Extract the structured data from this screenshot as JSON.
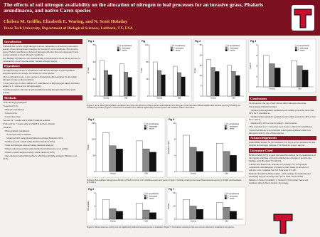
{
  "header": {
    "title": "The effects of soil nitrogen availability on the allocation of nitrogen to leaf processes for an invasive grass, Phalaris arundinacea, and native Carex species",
    "authors": "Chelsea M. Griffin, Elizabeth E. Waring, and N. Scott Holaday",
    "affiliation": "Texas Tech University, Department of Biological Sciences, Lubbock, TX, USA"
  },
  "left": {
    "sections": [
      {
        "heading": "Introduction",
        "paragraphs": [
          "Wetlands that receive a high nitrogen load are vulnerable to invasion by non-native species whose nitrogen-use strategies are favored by such conditions. The invasive grass, Phalaris arundinacea, thrives in nitrogen-rich sites that once supported Carex species adapted to lower nitrogen conditions.",
          "Our findings will improve the understanding of physiological bases for the success or vulnerability of each species under variable nitrogen supply."
        ]
      },
      {
        "heading": "Hypotheses",
        "paragraphs": [
          "•At high nitrogen levels, P. arundinacea will allocate nitrogen to photosynthetic enzymes and less to storage, in contrast to Carex species.",
          "•At low nitrogen levels, Carex species will maintain photosynthesis by allocating nitrogen storage to photosynthesis.",
          "•Carex lasiocarpa is more similar to P. arundinacea at high nitrogen supply and more similar to C. stricta at low nitrogen supply.",
          "•Soluble protein is allocated to photosynthesis during nitrogen deprivation in all species."
        ]
      },
      {
        "heading": "Methods",
        "paragraphs": [
          "•TTU Biology greenhouse",
          "•3 species (N=5)",
          "   •Phalaris arundinacea",
          "   •Carex stricta",
          "   •Carex lasiocarpa",
          "•Grown for 7 weeks with 15mM N nutrient solution",
          "•Followed by 7 weeks under 0.15mM N nutrient solution",
          "•Analysis",
          "   •Photosynthetic parameters",
          "      •Collected with Li-6400XT",
          "      •Analyzed in R using photosynthesis package (Duursma 2015)",
          "   •Soluble protein content using Bradford method (1976)",
          "   •Total leaf nitrogen analyzed using elemental analyzer",
          "   •Nitrate reductase activity using method from Mussarova et al. (2006)",
          "   •Nitrate content analyzed using Cataldo method (1975)",
          "   •Data analyzed using Mixed-effects ANOVA in R (nlme package; Pinheiro et al. 2013)"
        ]
      }
    ]
  },
  "right": {
    "sections": [
      {
        "heading": "Conclusions",
        "paragraphs": [
          "•In all species, the age of leaf did not affect nitrogen allocation.",
          "•Decreasing available nitrogen",
          "   •Reduced photosynthetic parameters and soluble protein by more than 50% for P. arundinacea",
          "   •Reduced photosynthetic parameters and soluble protein by 40% or less for C. stricta",
          "   •Reduced by 20% or less in young C. stricta leaves",
          "•The responses for C. lasiocarpa were closer to that for P. arundinacea.",
          "•Stored leaf nitrate is not allocated toward photosynthesis under low nitrogen levels by any of these species."
        ]
      },
      {
        "heading": "Acknowledgements",
        "paragraphs": [
          "Dallas Haun Thanks for lab assistance. Dr. Ray Lee for assistance in data analysis and nitrogen samples. TTU funds for project support."
        ]
      },
      {
        "heading": "Literature Cited",
        "paragraphs": [
          "Bradford MM (1976) A rapid and sensitive method for the quantitation of microgram quantities of protein utilizing the principle of protein-dye binding. Anal Biochem 72:248-254.",
          "Cataldo DA, Haroon M, Schrader LE, Youngs VL (1975) Rapid colorimetric determination of nitrate in plant tissue by nitration of salicylic acid. Commun Soil Sci Plant Anal 6:71-80.",
          "Duursma RA (2015) Plantecophys - an R package for analysing and modelling leaf gas exchange data. PLoS ONE 10:e0143346.",
          "Pinheiro J, Bates D, DebRoy S, Sarkar D (2013) nlme: linear and nonlinear mixed effects models. R package."
        ]
      }
    ]
  },
  "figures": [
    {
      "label": "Fig 1",
      "ylabel": "Vcmax",
      "categories": [
        "Young",
        "Old"
      ],
      "series": [
        {
          "name": "P. arundinacea",
          "color": "#ffffff",
          "values": [
            42,
            38
          ]
        },
        {
          "name": "C. lasiocarpa",
          "color": "#888888",
          "values": [
            30,
            28
          ]
        },
        {
          "name": "C. stricta",
          "color": "#111111",
          "values": [
            25,
            22
          ]
        }
      ],
      "ylim": [
        0,
        60
      ],
      "yticks": [
        0,
        20,
        40,
        60
      ]
    },
    {
      "label": "Fig",
      "ylabel": "Jmax",
      "categories": [
        "Young",
        "Old"
      ],
      "series": [
        {
          "name": "P. arundinacea",
          "color": "#ffffff",
          "values": [
            80,
            70
          ]
        },
        {
          "name": "C. lasiocarpa",
          "color": "#888888",
          "values": [
            60,
            55
          ]
        },
        {
          "name": "C. stricta",
          "color": "#111111",
          "values": [
            50,
            45
          ]
        }
      ],
      "ylim": [
        0,
        120
      ],
      "yticks": [
        0,
        40,
        80,
        120
      ]
    },
    {
      "label": "Fig 2",
      "ylabel": "Amax",
      "categories": [
        "Young",
        "Old"
      ],
      "series": [
        {
          "name": "P. arundinacea",
          "color": "#ffffff",
          "values": [
            18,
            15
          ]
        },
        {
          "name": "C. lasiocarpa",
          "color": "#888888",
          "values": [
            14,
            12
          ]
        },
        {
          "name": "C. stricta",
          "color": "#111111",
          "values": [
            12,
            10
          ]
        }
      ],
      "ylim": [
        0,
        25
      ],
      "yticks": [
        0,
        5,
        10,
        15,
        20,
        25
      ]
    },
    {
      "label": "Fig 3",
      "ylabel": "Leaf N",
      "categories": [
        "Young",
        "Old"
      ],
      "series": [
        {
          "name": "P. arundinacea",
          "color": "#ffffff",
          "values": [
            3,
            2.5
          ]
        },
        {
          "name": "C. lasiocarpa",
          "color": "#888888",
          "values": [
            2.2,
            2
          ]
        },
        {
          "name": "C. stricta",
          "color": "#111111",
          "values": [
            1.8,
            1.6
          ]
        }
      ],
      "ylim": [
        0,
        4
      ],
      "yticks": [
        0,
        1,
        2,
        3,
        4
      ]
    },
    {
      "label": "Fig 4",
      "ylabel": "PNUE",
      "categories": [
        "Young",
        "Old"
      ],
      "series": [
        {
          "name": "P. arundinacea",
          "color": "#ffffff",
          "values": [
            120,
            95
          ]
        },
        {
          "name": "C. lasiocarpa",
          "color": "#888888",
          "values": [
            80,
            70
          ]
        },
        {
          "name": "C. stricta",
          "color": "#111111",
          "values": [
            70,
            60
          ]
        }
      ],
      "ylim": [
        0,
        150
      ],
      "yticks": [
        0,
        50,
        100,
        150
      ]
    },
    {
      "label": "Fig 5",
      "ylabel": "Soluble protein",
      "categories": [
        "Young",
        "Old"
      ],
      "series": [
        {
          "name": "P. arundinacea",
          "color": "#ffffff",
          "values": [
            9,
            7
          ]
        },
        {
          "name": "C. lasiocarpa",
          "color": "#888888",
          "values": [
            6,
            5
          ]
        },
        {
          "name": "C. stricta",
          "color": "#111111",
          "values": [
            5,
            4
          ]
        }
      ],
      "ylim": [
        0,
        12
      ],
      "yticks": [
        0,
        4,
        8,
        12
      ]
    },
    {
      "label": "Fig 6",
      "ylabel": "NR activity",
      "categories": [
        "Young",
        "Old"
      ],
      "series": [
        {
          "name": "P. arundinacea",
          "color": "#ffffff",
          "values": [
            1.5,
            1.2
          ]
        },
        {
          "name": "C. lasiocarpa",
          "color": "#888888",
          "values": [
            0.8,
            0.7
          ]
        },
        {
          "name": "C. stricta",
          "color": "#111111",
          "values": [
            0.6,
            0.5
          ]
        }
      ],
      "ylim": [
        0,
        2
      ],
      "yticks": [
        0,
        1,
        2
      ]
    },
    {
      "label": "Fig 7",
      "ylabel": "Nitrate",
      "categories": [
        "Young",
        "Old"
      ],
      "series": [
        {
          "name": "P. arundinacea",
          "color": "#ffffff",
          "values": [
            30,
            25
          ]
        },
        {
          "name": "C. lasiocarpa",
          "color": "#888888",
          "values": [
            20,
            18
          ]
        },
        {
          "name": "C. stricta",
          "color": "#111111",
          "values": [
            15,
            12
          ]
        }
      ],
      "ylim": [
        0,
        40
      ],
      "yticks": [
        0,
        20,
        40
      ]
    }
  ],
  "captions": [
    "Figures 1 and 2: Mean photosynthetic parameters for young and old leaves of three species under high and low nitrogen. Vcmax and Jmax differed significantly between species (p<0.0001) and treatments (p<0.0001). Figure 3: Total leaf N in standard area; differed significantly between species and treatment, with no interaction.",
    "Figure 4: Photosynthetic nitrogen use efficiency (PNUE) in leaves of P. arundinacea and Carex species. Figure 5: Soluble protein per leaf area differed between species (p<0.0001) and treatments (p<0.0001).",
    "Figure 6: Nitrate reductase activity was not significantly different between species or treatments. Figure 7: Total nitrate content per leaf area was not affected by treatment in any species."
  ]
}
